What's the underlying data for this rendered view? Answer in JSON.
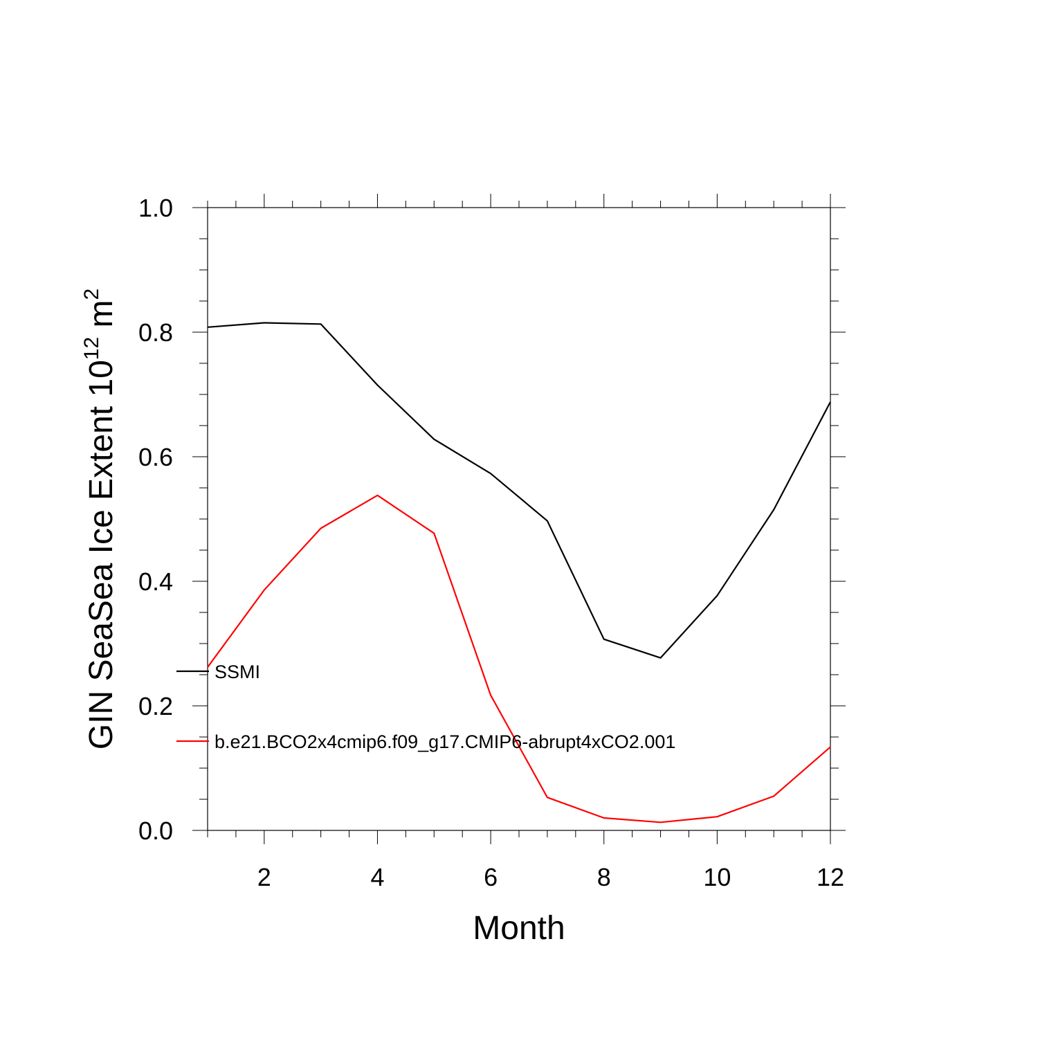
{
  "chart_data": {
    "type": "line",
    "title": "",
    "xlabel": "Month",
    "ylabel": {
      "prefix": "GIN SeaSea Ice Extent 10",
      "exponent": "12",
      "unit": " m",
      "unit_exponent": "2"
    },
    "xlim": [
      1,
      12
    ],
    "ylim": [
      0,
      1
    ],
    "x_ticks": [
      2,
      4,
      6,
      8,
      10,
      12
    ],
    "x_tick_labels": [
      "2",
      "4",
      "6",
      "8",
      "10",
      "12"
    ],
    "y_ticks": [
      0,
      0.2,
      0.4,
      0.6,
      0.8,
      1.0
    ],
    "y_tick_labels": [
      "0.0",
      "0.2",
      "0.4",
      "0.6",
      "0.8",
      "1.0"
    ],
    "grid": false,
    "legend_position": "left",
    "x": [
      1,
      2,
      3,
      4,
      5,
      6,
      7,
      8,
      9,
      10,
      11,
      12
    ],
    "series": [
      {
        "name": "SSMI",
        "color": "#000000",
        "values": [
          0.808,
          0.815,
          0.813,
          0.715,
          0.628,
          0.573,
          0.497,
          0.307,
          0.277,
          0.377,
          0.515,
          0.688
        ]
      },
      {
        "name": "b.e21.BCO2x4cmip6.f09_g17.CMIP6-abrupt4xCO2.001",
        "color": "#ff0000",
        "values": [
          0.262,
          0.386,
          0.485,
          0.538,
          0.477,
          0.217,
          0.053,
          0.02,
          0.013,
          0.022,
          0.055,
          0.134
        ]
      }
    ]
  }
}
